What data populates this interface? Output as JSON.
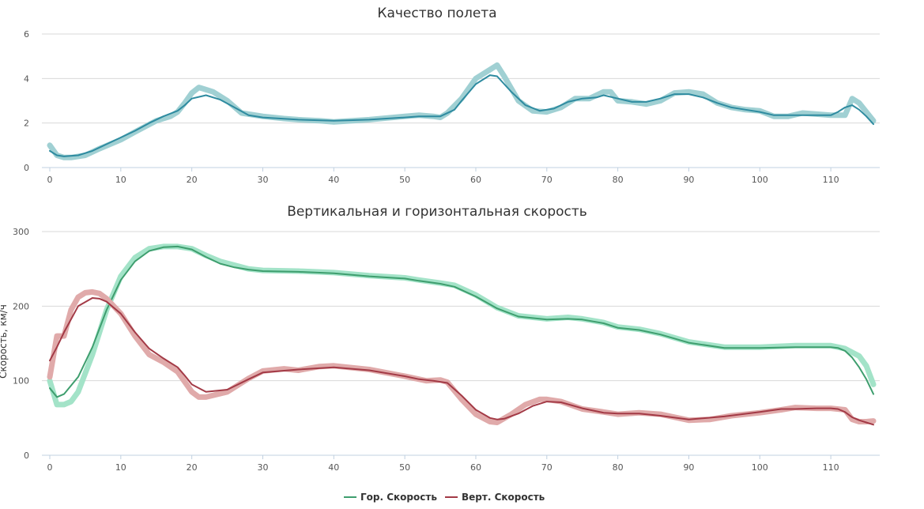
{
  "chart_data": [
    {
      "type": "line",
      "title": "Качество полета",
      "xlabel": "",
      "ylabel": "",
      "xlim": [
        0,
        116
      ],
      "ylim": [
        0,
        6
      ],
      "xticks": [
        0,
        10,
        20,
        30,
        40,
        50,
        60,
        70,
        80,
        90,
        100,
        110
      ],
      "yticks": [
        0,
        2,
        4,
        6
      ],
      "grid": true,
      "series": [
        {
          "color": "#a0d0d3",
          "style": "thick-raw",
          "x": [
            0,
            1,
            2,
            3,
            4,
            5,
            7,
            10,
            12,
            15,
            17,
            18,
            19,
            20,
            21,
            22,
            23,
            25,
            27,
            30,
            33,
            35,
            38,
            40,
            45,
            50,
            52,
            54,
            55,
            56,
            58,
            60,
            62,
            63,
            64,
            66,
            68,
            70,
            72,
            74,
            76,
            78,
            79,
            80,
            82,
            84,
            86,
            88,
            90,
            92,
            94,
            96,
            98,
            100,
            102,
            104,
            106,
            108,
            110,
            112,
            113,
            114,
            116
          ],
          "y": [
            1.0,
            0.55,
            0.45,
            0.45,
            0.5,
            0.55,
            0.85,
            1.25,
            1.6,
            2.1,
            2.3,
            2.5,
            2.9,
            3.35,
            3.6,
            3.5,
            3.4,
            3.0,
            2.45,
            2.3,
            2.2,
            2.15,
            2.1,
            2.05,
            2.15,
            2.3,
            2.35,
            2.3,
            2.25,
            2.45,
            3.1,
            4.0,
            4.4,
            4.6,
            4.1,
            3.0,
            2.55,
            2.5,
            2.7,
            3.1,
            3.1,
            3.4,
            3.4,
            3.0,
            2.95,
            2.85,
            3.0,
            3.35,
            3.4,
            3.3,
            2.9,
            2.7,
            2.6,
            2.55,
            2.3,
            2.3,
            2.45,
            2.4,
            2.35,
            2.35,
            3.1,
            2.9,
            2.1
          ]
        },
        {
          "color": "#2e8ba0",
          "style": "smooth",
          "x": [
            0,
            1,
            2,
            4,
            6,
            8,
            10,
            12,
            14,
            16,
            18,
            19,
            20,
            22,
            24,
            26,
            28,
            30,
            35,
            40,
            45,
            50,
            52,
            55,
            57,
            58,
            60,
            62,
            63,
            65,
            67,
            69,
            71,
            73,
            75,
            77,
            78,
            80,
            82,
            84,
            86,
            88,
            90,
            92,
            94,
            96,
            98,
            100,
            102,
            105,
            108,
            110,
            111,
            112,
            113,
            114,
            115,
            116
          ],
          "y": [
            0.75,
            0.55,
            0.5,
            0.55,
            0.75,
            1.05,
            1.35,
            1.65,
            2.0,
            2.3,
            2.55,
            2.8,
            3.1,
            3.25,
            3.05,
            2.7,
            2.35,
            2.25,
            2.15,
            2.1,
            2.15,
            2.25,
            2.3,
            2.3,
            2.6,
            3.0,
            3.75,
            4.15,
            4.1,
            3.4,
            2.8,
            2.55,
            2.65,
            2.95,
            3.1,
            3.15,
            3.25,
            3.1,
            2.95,
            2.95,
            3.1,
            3.3,
            3.3,
            3.15,
            2.9,
            2.7,
            2.6,
            2.5,
            2.35,
            2.35,
            2.35,
            2.35,
            2.5,
            2.7,
            2.8,
            2.6,
            2.3,
            1.95
          ]
        }
      ]
    },
    {
      "type": "line",
      "title": "Вертикальная и горизонтальная скорость",
      "xlabel": "",
      "ylabel": "Скорость, км/ч",
      "xlim": [
        0,
        116
      ],
      "ylim": [
        0,
        300
      ],
      "xticks": [
        0,
        10,
        20,
        30,
        40,
        50,
        60,
        70,
        80,
        90,
        100,
        110
      ],
      "yticks": [
        0,
        100,
        200,
        300
      ],
      "grid": true,
      "legend": "bottom-center",
      "series": [
        {
          "color": "#a3e3c8",
          "style": "thick-raw",
          "x": [
            0,
            1,
            2,
            3,
            4,
            6,
            8,
            10,
            12,
            14,
            16,
            18,
            20,
            22,
            24,
            26,
            28,
            30,
            35,
            40,
            45,
            50,
            52,
            55,
            57,
            60,
            63,
            66,
            70,
            73,
            75,
            78,
            80,
            83,
            86,
            90,
            95,
            100,
            105,
            110,
            112,
            114,
            115,
            116
          ],
          "y": [
            100,
            68,
            68,
            72,
            85,
            135,
            195,
            240,
            265,
            277,
            280,
            280,
            277,
            268,
            260,
            255,
            250,
            248,
            247,
            245,
            241,
            238,
            235,
            231,
            228,
            215,
            198,
            187,
            183,
            185,
            183,
            178,
            172,
            169,
            163,
            152,
            145,
            145,
            147,
            147,
            143,
            133,
            120,
            95
          ]
        },
        {
          "color": "#3e9e6e",
          "style": "smooth",
          "x": [
            0,
            1,
            2,
            4,
            6,
            8,
            10,
            12,
            14,
            16,
            18,
            20,
            22,
            24,
            26,
            28,
            30,
            35,
            40,
            45,
            50,
            52,
            55,
            57,
            60,
            63,
            66,
            70,
            73,
            75,
            78,
            80,
            83,
            86,
            90,
            95,
            100,
            105,
            110,
            111,
            112,
            113,
            114,
            115,
            116
          ],
          "y": [
            90,
            78,
            82,
            105,
            145,
            195,
            235,
            260,
            274,
            279,
            280,
            276,
            266,
            257,
            252,
            249,
            247,
            246,
            244,
            240,
            237,
            234,
            230,
            226,
            213,
            197,
            186,
            182,
            183,
            182,
            177,
            171,
            168,
            162,
            151,
            144,
            144,
            145,
            145,
            144,
            140,
            131,
            118,
            102,
            82
          ]
        },
        {
          "color": "#e0aaaa",
          "style": "thick-raw",
          "x": [
            0,
            1,
            2,
            3,
            4,
            5,
            6,
            7,
            8,
            10,
            12,
            14,
            16,
            18,
            20,
            21,
            22,
            25,
            28,
            30,
            33,
            35,
            38,
            40,
            45,
            50,
            53,
            55,
            56,
            58,
            60,
            62,
            63,
            65,
            67,
            69,
            70,
            72,
            75,
            78,
            80,
            83,
            86,
            90,
            93,
            96,
            100,
            103,
            105,
            108,
            110,
            112,
            113,
            114,
            115,
            116
          ],
          "y": [
            105,
            160,
            160,
            195,
            212,
            218,
            219,
            217,
            210,
            190,
            160,
            135,
            125,
            112,
            85,
            78,
            78,
            85,
            103,
            113,
            116,
            114,
            119,
            120,
            115,
            106,
            100,
            101,
            98,
            75,
            55,
            45,
            44,
            55,
            68,
            75,
            75,
            72,
            62,
            58,
            55,
            57,
            55,
            47,
            48,
            53,
            57,
            61,
            64,
            63,
            63,
            61,
            48,
            45,
            45,
            46
          ]
        },
        {
          "color": "#a33a46",
          "style": "smooth",
          "x": [
            0,
            1,
            2,
            4,
            6,
            7,
            8,
            10,
            12,
            14,
            16,
            18,
            19,
            20,
            22,
            25,
            28,
            30,
            35,
            40,
            45,
            50,
            52,
            54,
            56,
            58,
            60,
            62,
            63,
            64,
            66,
            68,
            70,
            72,
            75,
            78,
            80,
            83,
            86,
            90,
            95,
            100,
            103,
            105,
            108,
            110,
            111,
            112,
            113,
            114,
            115,
            116
          ],
          "y": [
            127,
            145,
            165,
            200,
            211,
            210,
            206,
            190,
            165,
            143,
            130,
            118,
            107,
            95,
            85,
            88,
            102,
            111,
            115,
            118,
            114,
            106,
            102,
            100,
            97,
            80,
            61,
            50,
            48,
            49,
            56,
            66,
            72,
            71,
            63,
            57,
            56,
            56,
            53,
            48,
            52,
            58,
            62,
            62,
            63,
            63,
            62,
            58,
            51,
            47,
            44,
            41
          ]
        }
      ]
    }
  ],
  "legend": {
    "items": [
      {
        "label": "Гор. Скорость",
        "color": "#3e9e6e"
      },
      {
        "label": "Верт. Скорость",
        "color": "#a33a46"
      }
    ]
  }
}
